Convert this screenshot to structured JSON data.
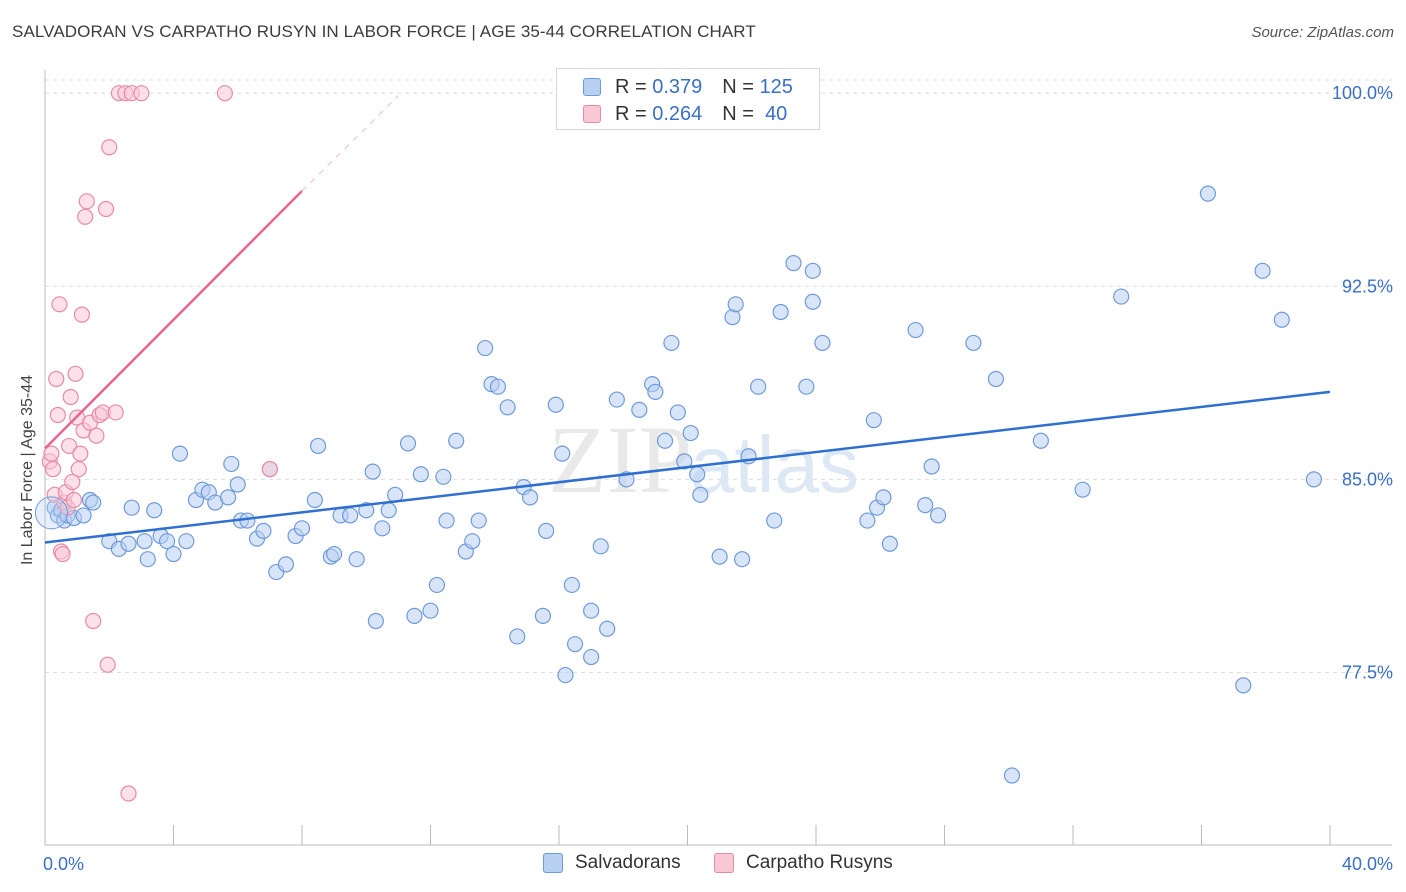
{
  "header": {
    "title": "SALVADORAN VS CARPATHO RUSYN IN LABOR FORCE | AGE 35-44 CORRELATION CHART",
    "source": "Source: ZipAtlas.com"
  },
  "watermark": {
    "zip": "ZIP",
    "atlas": "atlas"
  },
  "legend": {
    "rows": [
      {
        "r_label": "R =",
        "r_value": "0.379",
        "n_label": "N =",
        "n_value": "125"
      },
      {
        "r_label": "R =",
        "r_value": "0.264",
        "n_label": "N =",
        "n_value": "40"
      }
    ]
  },
  "colors": {
    "blue_fill": "#b8d0f2",
    "blue_stroke": "#6f9ad8",
    "blue_line": "#2f6fcf",
    "pink_fill": "#f9c8d5",
    "pink_stroke": "#e88aa6",
    "pink_line": "#e8658f",
    "grid": "#dddddd",
    "tick_label": "#3a6fc4"
  },
  "chart_data": {
    "type": "scatter",
    "title": "SALVADORAN VS CARPATHO RUSYN IN LABOR FORCE | AGE 35-44 CORRELATION CHART",
    "xlabel": "",
    "ylabel": "In Labor Force | Age 35-44",
    "xlim": [
      0,
      40
    ],
    "ylim": [
      70.8,
      100.9
    ],
    "x_tick_labels": [
      "0.0%",
      "40.0%"
    ],
    "y_ticks": [
      77.5,
      85.0,
      92.5,
      100.0
    ],
    "y_tick_labels": [
      "77.5%",
      "85.0%",
      "92.5%",
      "100.0%"
    ],
    "grid": true,
    "legend_position": "top-center",
    "series": [
      {
        "name": "Salvadorans",
        "r": 0.379,
        "n": 125,
        "trend": {
          "x": [
            0,
            40
          ],
          "y": [
            82.55,
            88.4
          ]
        },
        "points": [
          [
            0.3,
            83.9
          ],
          [
            0.4,
            83.6
          ],
          [
            0.5,
            83.8
          ],
          [
            0.6,
            83.4
          ],
          [
            0.7,
            83.6
          ],
          [
            0.9,
            83.5
          ],
          [
            1.2,
            83.6
          ],
          [
            1.4,
            84.2
          ],
          [
            1.5,
            84.1
          ],
          [
            2.0,
            82.6
          ],
          [
            2.3,
            82.3
          ],
          [
            2.6,
            82.5
          ],
          [
            2.7,
            83.9
          ],
          [
            3.1,
            82.6
          ],
          [
            3.2,
            81.9
          ],
          [
            3.4,
            83.8
          ],
          [
            3.6,
            82.8
          ],
          [
            3.8,
            82.6
          ],
          [
            4.0,
            82.1
          ],
          [
            4.2,
            86.0
          ],
          [
            4.4,
            82.6
          ],
          [
            4.7,
            84.2
          ],
          [
            4.9,
            84.6
          ],
          [
            5.1,
            84.5
          ],
          [
            5.3,
            84.1
          ],
          [
            5.7,
            84.3
          ],
          [
            5.8,
            85.6
          ],
          [
            6.0,
            84.8
          ],
          [
            6.1,
            83.4
          ],
          [
            6.3,
            83.4
          ],
          [
            6.6,
            82.7
          ],
          [
            6.8,
            83.0
          ],
          [
            7.0,
            85.4
          ],
          [
            7.2,
            81.4
          ],
          [
            7.5,
            81.7
          ],
          [
            7.8,
            82.8
          ],
          [
            8.0,
            83.1
          ],
          [
            8.4,
            84.2
          ],
          [
            8.5,
            86.3
          ],
          [
            8.9,
            82.0
          ],
          [
            9.0,
            82.1
          ],
          [
            9.2,
            83.6
          ],
          [
            9.5,
            83.6
          ],
          [
            9.7,
            81.9
          ],
          [
            10.0,
            83.8
          ],
          [
            10.2,
            85.3
          ],
          [
            10.3,
            79.5
          ],
          [
            10.5,
            83.1
          ],
          [
            10.7,
            83.8
          ],
          [
            10.9,
            84.4
          ],
          [
            11.3,
            86.4
          ],
          [
            11.5,
            79.7
          ],
          [
            11.7,
            85.2
          ],
          [
            12.0,
            79.9
          ],
          [
            12.2,
            80.9
          ],
          [
            12.4,
            85.1
          ],
          [
            12.5,
            83.4
          ],
          [
            12.8,
            86.5
          ],
          [
            13.1,
            82.2
          ],
          [
            13.3,
            82.6
          ],
          [
            13.5,
            83.4
          ],
          [
            13.7,
            90.1
          ],
          [
            13.9,
            88.7
          ],
          [
            14.1,
            88.6
          ],
          [
            14.4,
            87.8
          ],
          [
            14.7,
            78.9
          ],
          [
            14.9,
            84.7
          ],
          [
            15.1,
            84.3
          ],
          [
            15.5,
            79.7
          ],
          [
            15.6,
            83.0
          ],
          [
            15.9,
            87.9
          ],
          [
            16.1,
            86.0
          ],
          [
            16.2,
            77.4
          ],
          [
            16.4,
            80.9
          ],
          [
            16.5,
            78.6
          ],
          [
            17.0,
            79.9
          ],
          [
            17.0,
            78.1
          ],
          [
            17.3,
            82.4
          ],
          [
            17.5,
            79.2
          ],
          [
            17.8,
            88.1
          ],
          [
            18.1,
            85.0
          ],
          [
            18.5,
            87.7
          ],
          [
            18.9,
            88.7
          ],
          [
            19.0,
            88.4
          ],
          [
            19.3,
            86.5
          ],
          [
            19.5,
            90.3
          ],
          [
            19.7,
            87.6
          ],
          [
            19.9,
            85.7
          ],
          [
            20.1,
            86.8
          ],
          [
            20.3,
            85.2
          ],
          [
            20.4,
            84.4
          ],
          [
            21.0,
            82.0
          ],
          [
            21.4,
            91.3
          ],
          [
            21.5,
            91.8
          ],
          [
            21.7,
            81.9
          ],
          [
            21.9,
            85.9
          ],
          [
            22.2,
            88.6
          ],
          [
            22.7,
            83.4
          ],
          [
            22.9,
            91.5
          ],
          [
            23.3,
            93.4
          ],
          [
            23.7,
            88.6
          ],
          [
            23.9,
            93.1
          ],
          [
            23.9,
            91.9
          ],
          [
            24.2,
            90.3
          ],
          [
            25.6,
            83.4
          ],
          [
            25.8,
            87.3
          ],
          [
            25.9,
            83.9
          ],
          [
            26.1,
            84.3
          ],
          [
            26.3,
            82.5
          ],
          [
            27.1,
            90.8
          ],
          [
            27.4,
            84.0
          ],
          [
            27.6,
            85.5
          ],
          [
            27.8,
            83.6
          ],
          [
            28.9,
            90.3
          ],
          [
            29.6,
            88.9
          ],
          [
            30.1,
            73.5
          ],
          [
            31.0,
            86.5
          ],
          [
            32.3,
            84.6
          ],
          [
            33.5,
            92.1
          ],
          [
            36.2,
            96.1
          ],
          [
            37.3,
            77.0
          ],
          [
            37.9,
            93.1
          ],
          [
            38.5,
            91.2
          ],
          [
            39.5,
            85.0
          ]
        ]
      },
      {
        "name": "Carpatho Rusyns",
        "r": 0.264,
        "n": 40,
        "trend": {
          "x": [
            0,
            8.0
          ],
          "y": [
            86.2,
            96.2
          ],
          "extension": {
            "x": [
              8.0,
              11.0
            ],
            "y": [
              96.2,
              99.9
            ]
          }
        },
        "points": [
          [
            0.15,
            85.7
          ],
          [
            0.2,
            86.0
          ],
          [
            0.25,
            85.4
          ],
          [
            0.3,
            84.4
          ],
          [
            0.35,
            88.9
          ],
          [
            0.4,
            87.5
          ],
          [
            0.45,
            91.8
          ],
          [
            0.5,
            82.2
          ],
          [
            0.55,
            82.1
          ],
          [
            0.6,
            84.1
          ],
          [
            0.65,
            84.5
          ],
          [
            0.7,
            83.9
          ],
          [
            0.75,
            86.3
          ],
          [
            0.8,
            88.2
          ],
          [
            0.85,
            84.9
          ],
          [
            0.9,
            84.2
          ],
          [
            0.95,
            89.1
          ],
          [
            1.0,
            87.4
          ],
          [
            1.05,
            85.4
          ],
          [
            1.1,
            86.0
          ],
          [
            1.15,
            91.4
          ],
          [
            1.2,
            86.9
          ],
          [
            1.25,
            95.2
          ],
          [
            1.3,
            95.8
          ],
          [
            1.4,
            87.2
          ],
          [
            1.5,
            79.5
          ],
          [
            1.6,
            86.7
          ],
          [
            1.7,
            87.5
          ],
          [
            1.8,
            87.6
          ],
          [
            1.9,
            95.5
          ],
          [
            1.95,
            77.8
          ],
          [
            2.0,
            97.9
          ],
          [
            2.2,
            87.6
          ],
          [
            2.3,
            100.0
          ],
          [
            2.5,
            100.0
          ],
          [
            2.6,
            72.8
          ],
          [
            2.7,
            100.0
          ],
          [
            3.0,
            100.0
          ],
          [
            5.6,
            100.0
          ],
          [
            7.0,
            85.4
          ]
        ]
      }
    ]
  }
}
